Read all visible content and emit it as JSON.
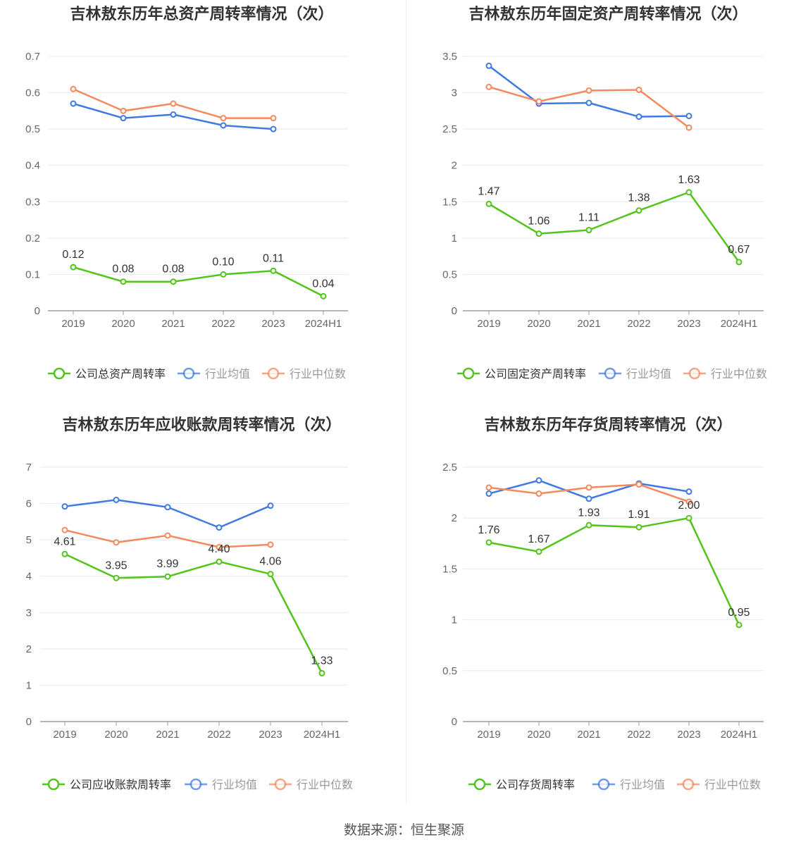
{
  "source_label": "数据来源：恒生聚源",
  "colors": {
    "company": "#52c41a",
    "avg": "#3f7ae0",
    "median": "#f5895d",
    "grid": "#e6e9f0",
    "axis": "#9a9da6",
    "tick": "#666666"
  },
  "chart_data": [
    {
      "type": "line",
      "title": "吉林敖东历年总资产周转率情况（次）",
      "categories": [
        "2019",
        "2020",
        "2021",
        "2022",
        "2023",
        "2024H1"
      ],
      "yticks": [
        "0",
        "0.1",
        "0.2",
        "0.3",
        "0.4",
        "0.5",
        "0.6",
        "0.7"
      ],
      "ylim": [
        0,
        0.7
      ],
      "legend_placement": "bottom",
      "series": [
        {
          "name": "公司总资产周转率",
          "role": "company",
          "values": [
            0.12,
            0.08,
            0.08,
            0.1,
            0.11,
            0.04
          ],
          "labels": [
            "0.12",
            "0.08",
            "0.08",
            "0.10",
            "0.11",
            "0.04"
          ]
        },
        {
          "name": "行业均值",
          "role": "avg",
          "values": [
            0.57,
            0.53,
            0.54,
            0.51,
            0.5,
            null
          ]
        },
        {
          "name": "行业中位数",
          "role": "median",
          "values": [
            0.61,
            0.55,
            0.57,
            0.53,
            0.53,
            null
          ]
        }
      ]
    },
    {
      "type": "line",
      "title": "吉林敖东历年固定资产周转率情况（次）",
      "categories": [
        "2019",
        "2020",
        "2021",
        "2022",
        "2023",
        "2024H1"
      ],
      "yticks": [
        "0",
        "0.5",
        "1",
        "1.5",
        "2",
        "2.5",
        "3",
        "3.5"
      ],
      "ylim": [
        0,
        3.5
      ],
      "legend_placement": "bottom",
      "series": [
        {
          "name": "公司固定资产周转率",
          "role": "company",
          "values": [
            1.47,
            1.06,
            1.11,
            1.38,
            1.63,
            0.67
          ],
          "labels": [
            "1.47",
            "1.06",
            "1.11",
            "1.38",
            "1.63",
            "0.67"
          ]
        },
        {
          "name": "行业均值",
          "role": "avg",
          "values": [
            3.37,
            2.85,
            2.86,
            2.67,
            2.68,
            null
          ]
        },
        {
          "name": "行业中位数",
          "role": "median",
          "values": [
            3.08,
            2.88,
            3.03,
            3.04,
            2.52,
            null
          ]
        }
      ]
    },
    {
      "type": "line",
      "title": "吉林敖东历年应收账款周转率情况（次）",
      "categories": [
        "2019",
        "2020",
        "2021",
        "2022",
        "2023",
        "2024H1"
      ],
      "yticks": [
        "0",
        "1",
        "2",
        "3",
        "4",
        "5",
        "6",
        "7"
      ],
      "ylim": [
        0,
        7
      ],
      "legend_placement": "bottom",
      "series": [
        {
          "name": "公司应收账款周转率",
          "role": "company",
          "values": [
            4.61,
            3.95,
            3.99,
            4.4,
            4.06,
            1.33
          ],
          "labels": [
            "4.61",
            "3.95",
            "3.99",
            "4.40",
            "4.06",
            "1.33"
          ]
        },
        {
          "name": "行业均值",
          "role": "avg",
          "values": [
            5.92,
            6.1,
            5.9,
            5.34,
            5.94,
            null
          ]
        },
        {
          "name": "行业中位数",
          "role": "median",
          "values": [
            5.27,
            4.93,
            5.12,
            4.8,
            4.87,
            null
          ]
        }
      ]
    },
    {
      "type": "line",
      "title": "吉林敖东历年存货周转率情况（次）",
      "categories": [
        "2019",
        "2020",
        "2021",
        "2022",
        "2023",
        "2024H1"
      ],
      "yticks": [
        "0",
        "0.5",
        "1",
        "1.5",
        "2",
        "2.5"
      ],
      "ylim": [
        0,
        2.5
      ],
      "legend_placement": "bottom",
      "series": [
        {
          "name": "公司存货周转率",
          "role": "company",
          "values": [
            1.76,
            1.67,
            1.93,
            1.91,
            2.0,
            0.95
          ],
          "labels": [
            "1.76",
            "1.67",
            "1.93",
            "1.91",
            "2.00",
            "0.95"
          ]
        },
        {
          "name": "行业均值",
          "role": "avg",
          "values": [
            2.24,
            2.37,
            2.19,
            2.34,
            2.26,
            null
          ]
        },
        {
          "name": "行业中位数",
          "role": "median",
          "values": [
            2.3,
            2.24,
            2.3,
            2.33,
            2.16,
            null
          ]
        }
      ]
    }
  ]
}
